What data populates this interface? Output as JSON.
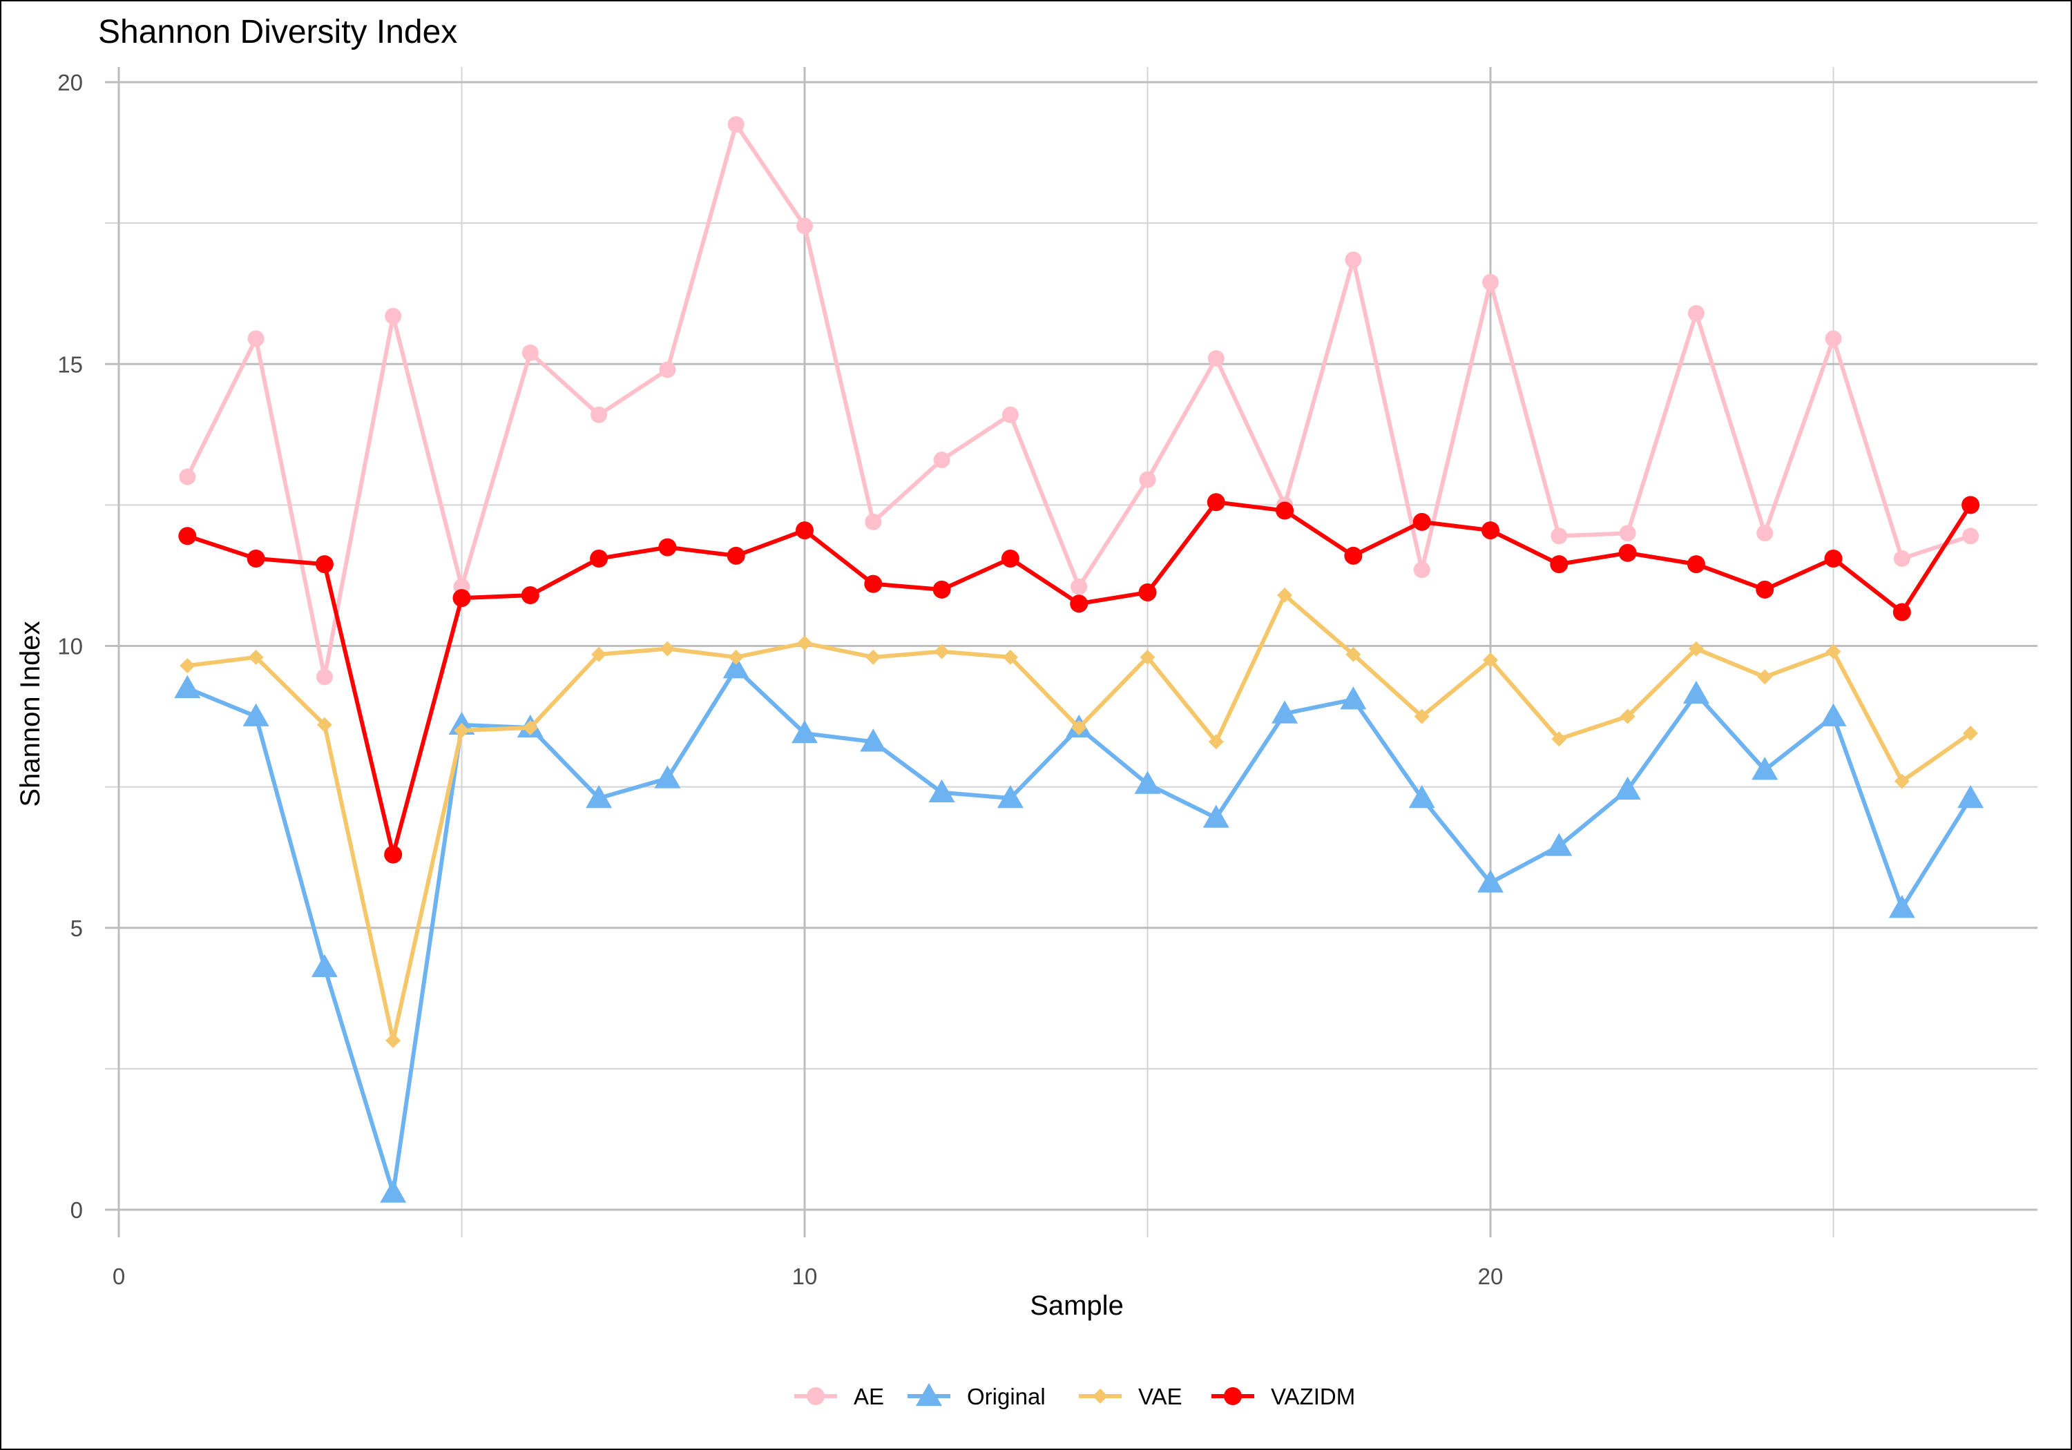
{
  "chart_data": {
    "type": "line",
    "title": "Shannon Diversity Index",
    "xlabel": "Sample",
    "ylabel": "Shannon Index",
    "xlim": [
      0,
      28
    ],
    "ylim": [
      0,
      20
    ],
    "x_ticks": [
      0,
      10,
      20
    ],
    "x_minor_ticks": [
      5,
      15,
      25
    ],
    "y_ticks": [
      0,
      5,
      10,
      15,
      20
    ],
    "y_minor_ticks": [
      2.5,
      7.5,
      12.5,
      17.5
    ],
    "grid": true,
    "legend_position": "bottom",
    "x": [
      1,
      2,
      3,
      4,
      5,
      6,
      7,
      8,
      9,
      10,
      11,
      12,
      13,
      14,
      15,
      16,
      17,
      18,
      19,
      20,
      21,
      22,
      23,
      24,
      25,
      26,
      27
    ],
    "series": [
      {
        "name": "AE",
        "color": "#FFC0CB",
        "marker": "circle",
        "values": [
          13.0,
          15.45,
          9.45,
          15.85,
          11.05,
          15.2,
          14.1,
          14.9,
          19.25,
          17.45,
          12.2,
          13.3,
          14.1,
          11.05,
          12.95,
          15.1,
          12.5,
          16.85,
          11.35,
          16.45,
          11.95,
          12.0,
          15.9,
          12.0,
          15.45,
          11.55,
          11.95
        ]
      },
      {
        "name": "Original",
        "color": "#6DB3F2",
        "marker": "triangle",
        "values": [
          9.25,
          8.75,
          4.3,
          0.3,
          8.6,
          8.55,
          7.3,
          7.65,
          9.6,
          8.45,
          8.3,
          7.4,
          7.3,
          8.55,
          7.55,
          6.95,
          8.8,
          9.05,
          7.3,
          5.8,
          6.45,
          7.45,
          9.15,
          7.8,
          8.75,
          5.35,
          7.3
        ]
      },
      {
        "name": "VAE",
        "color": "#F6C76A",
        "marker": "diamond",
        "values": [
          9.65,
          9.8,
          8.6,
          3.0,
          8.5,
          8.55,
          9.85,
          9.95,
          9.8,
          10.05,
          9.8,
          9.9,
          9.8,
          8.55,
          9.8,
          8.3,
          10.9,
          9.85,
          8.75,
          9.75,
          8.35,
          8.75,
          9.95,
          9.45,
          9.9,
          7.6,
          8.45
        ]
      },
      {
        "name": "VAZIDM",
        "color": "#FF0000",
        "marker": "circle",
        "values": [
          11.95,
          11.55,
          11.45,
          6.3,
          10.85,
          10.9,
          11.55,
          11.75,
          11.6,
          12.05,
          11.1,
          11.0,
          11.55,
          10.75,
          10.95,
          12.55,
          12.4,
          11.6,
          12.2,
          12.05,
          11.45,
          11.65,
          11.45,
          11.0,
          11.55,
          10.6,
          12.5
        ]
      }
    ]
  }
}
